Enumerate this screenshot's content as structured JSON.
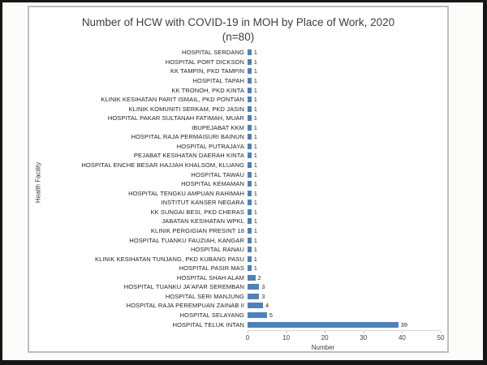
{
  "chart_data": {
    "type": "bar",
    "orientation": "horizontal",
    "title": "Number of HCW with COVID-19 in MOH by Place of Work, 2020",
    "subtitle": "(n=80)",
    "xlabel": "Number",
    "ylabel": "Health Facility",
    "xlim": [
      0,
      50
    ],
    "x_ticks": [
      0,
      10,
      20,
      30,
      40,
      50
    ],
    "bar_color": "#4d82b9",
    "grid": false,
    "legend": "none",
    "categories": [
      "HOSPITAL SERDANG",
      "HOSPITAL PORT DICKSON",
      "KK TAMPIN, PKD TAMPIN",
      "HOSPITAL TAPAH",
      "KK TRONOH, PKD KINTA",
      "KLINIK KESIHATAN PARIT ISMAIL, PKD PONTIAN",
      "KLINIK KOMUNITI SERKAM, PKD JASIN",
      "HOSPITAL PAKAR SULTANAH FATIMAH, MUAR",
      "IBUPEJABAT KKM",
      "HOSPITAL RAJA PERMAISURI BAINUN",
      "HOSPITAL PUTRAJAYA",
      "PEJABAT KESIHATAN DAERAH KINTA",
      "HOSPITAL ENCHE BESAR HAJJAH KHALSOM, KLUANG",
      "HOSPITAL TAWAU",
      "HOSPITAL KEMAMAN",
      "HOSPITAL TENGKU AMPUAN RAHIMAH",
      "INSTITUT KANSER NEGARA",
      "KK SUNGAI BESI, PKD CHERAS",
      "JABATAN KESIHATAN WPKL",
      "KLINIK PERGIGIAN PRESINT 18",
      "HOSPITAL TUANKU FAUZIAH, KANGAR",
      "HOSPITAL RANAU",
      "KLINIK KESIHATAN TUNJANG, PKD KUBANG PASU",
      "HOSPITAL PASIR MAS",
      "HOSPITAL SHAH ALAM",
      "HOSPITAL TUANKU JA'AFAR SEREMBAN",
      "HOSPITAL SERI MANJUNG",
      "HOSPITAL RAJA PEREMPUAN ZAINAB II",
      "HOSPITAL SELAYANG",
      "HOSPITAL TELUK INTAN"
    ],
    "values": [
      1,
      1,
      1,
      1,
      1,
      1,
      1,
      1,
      1,
      1,
      1,
      1,
      1,
      1,
      1,
      1,
      1,
      1,
      1,
      1,
      1,
      1,
      1,
      1,
      2,
      3,
      3,
      4,
      5,
      39
    ]
  }
}
